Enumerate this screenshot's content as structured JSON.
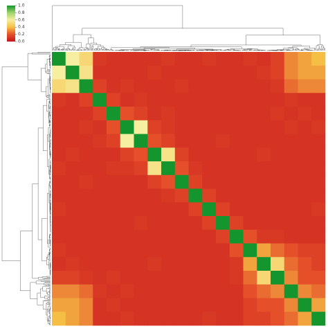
{
  "chart_data": {
    "type": "heatmap",
    "values": [
      [
        1.0,
        0.6,
        0.5,
        0.12,
        0.1,
        0.1,
        0.1,
        0.1,
        0.12,
        0.1,
        0.1,
        0.12,
        0.1,
        0.1,
        0.12,
        0.1,
        0.15,
        0.3,
        0.35,
        0.4
      ],
      [
        0.6,
        1.0,
        0.55,
        0.1,
        0.1,
        0.1,
        0.1,
        0.12,
        0.1,
        0.1,
        0.1,
        0.1,
        0.1,
        0.1,
        0.1,
        0.12,
        0.15,
        0.3,
        0.35,
        0.35
      ],
      [
        0.5,
        0.55,
        1.0,
        0.15,
        0.1,
        0.12,
        0.1,
        0.1,
        0.1,
        0.12,
        0.1,
        0.1,
        0.1,
        0.1,
        0.1,
        0.1,
        0.12,
        0.25,
        0.3,
        0.3
      ],
      [
        0.12,
        0.1,
        0.15,
        1.0,
        0.15,
        0.1,
        0.12,
        0.1,
        0.1,
        0.1,
        0.1,
        0.1,
        0.1,
        0.1,
        0.1,
        0.1,
        0.1,
        0.12,
        0.1,
        0.1
      ],
      [
        0.1,
        0.1,
        0.1,
        0.15,
        1.0,
        0.2,
        0.15,
        0.1,
        0.12,
        0.1,
        0.1,
        0.1,
        0.1,
        0.1,
        0.1,
        0.1,
        0.12,
        0.1,
        0.12,
        0.1
      ],
      [
        0.1,
        0.1,
        0.12,
        0.1,
        0.2,
        1.0,
        0.6,
        0.15,
        0.12,
        0.1,
        0.1,
        0.1,
        0.1,
        0.1,
        0.1,
        0.1,
        0.1,
        0.12,
        0.1,
        0.12
      ],
      [
        0.1,
        0.1,
        0.1,
        0.12,
        0.15,
        0.6,
        1.0,
        0.2,
        0.15,
        0.1,
        0.1,
        0.1,
        0.12,
        0.1,
        0.1,
        0.1,
        0.1,
        0.1,
        0.1,
        0.1
      ],
      [
        0.1,
        0.12,
        0.1,
        0.1,
        0.1,
        0.15,
        0.2,
        1.0,
        0.55,
        0.15,
        0.1,
        0.1,
        0.1,
        0.1,
        0.1,
        0.12,
        0.1,
        0.1,
        0.1,
        0.1
      ],
      [
        0.12,
        0.1,
        0.1,
        0.1,
        0.12,
        0.12,
        0.15,
        0.55,
        1.0,
        0.2,
        0.12,
        0.1,
        0.1,
        0.1,
        0.1,
        0.1,
        0.1,
        0.1,
        0.1,
        0.1
      ],
      [
        0.1,
        0.1,
        0.12,
        0.1,
        0.1,
        0.1,
        0.1,
        0.15,
        0.2,
        1.0,
        0.15,
        0.1,
        0.1,
        0.1,
        0.1,
        0.1,
        0.1,
        0.1,
        0.1,
        0.1
      ],
      [
        0.1,
        0.1,
        0.1,
        0.1,
        0.1,
        0.1,
        0.1,
        0.1,
        0.12,
        0.15,
        1.0,
        0.15,
        0.1,
        0.1,
        0.1,
        0.1,
        0.1,
        0.1,
        0.1,
        0.1
      ],
      [
        0.12,
        0.1,
        0.1,
        0.1,
        0.1,
        0.1,
        0.1,
        0.1,
        0.1,
        0.1,
        0.15,
        1.0,
        0.15,
        0.1,
        0.1,
        0.1,
        0.1,
        0.1,
        0.1,
        0.12
      ],
      [
        0.1,
        0.1,
        0.1,
        0.1,
        0.1,
        0.1,
        0.12,
        0.1,
        0.1,
        0.1,
        0.1,
        0.15,
        1.0,
        0.15,
        0.1,
        0.1,
        0.1,
        0.1,
        0.1,
        0.1
      ],
      [
        0.1,
        0.1,
        0.1,
        0.1,
        0.1,
        0.1,
        0.1,
        0.1,
        0.1,
        0.1,
        0.1,
        0.1,
        0.15,
        1.0,
        0.2,
        0.12,
        0.12,
        0.1,
        0.1,
        0.1
      ],
      [
        0.12,
        0.1,
        0.1,
        0.1,
        0.1,
        0.1,
        0.1,
        0.1,
        0.1,
        0.1,
        0.1,
        0.1,
        0.1,
        0.2,
        1.0,
        0.35,
        0.25,
        0.2,
        0.15,
        0.15
      ],
      [
        0.1,
        0.12,
        0.1,
        0.1,
        0.1,
        0.1,
        0.1,
        0.12,
        0.1,
        0.1,
        0.1,
        0.1,
        0.1,
        0.12,
        0.35,
        1.0,
        0.5,
        0.25,
        0.2,
        0.15
      ],
      [
        0.15,
        0.15,
        0.12,
        0.1,
        0.12,
        0.1,
        0.1,
        0.1,
        0.1,
        0.1,
        0.1,
        0.1,
        0.1,
        0.12,
        0.25,
        0.5,
        1.0,
        0.3,
        0.2,
        0.2
      ],
      [
        0.3,
        0.3,
        0.25,
        0.12,
        0.1,
        0.12,
        0.1,
        0.1,
        0.1,
        0.1,
        0.1,
        0.1,
        0.1,
        0.1,
        0.2,
        0.25,
        0.3,
        1.0,
        0.3,
        0.25
      ],
      [
        0.35,
        0.35,
        0.3,
        0.1,
        0.12,
        0.1,
        0.1,
        0.1,
        0.1,
        0.1,
        0.1,
        0.1,
        0.1,
        0.1,
        0.15,
        0.2,
        0.2,
        0.3,
        1.0,
        0.35
      ],
      [
        0.4,
        0.35,
        0.3,
        0.1,
        0.1,
        0.12,
        0.1,
        0.1,
        0.1,
        0.1,
        0.1,
        0.12,
        0.1,
        0.1,
        0.15,
        0.15,
        0.2,
        0.25,
        0.35,
        1.0
      ]
    ],
    "zlim": [
      0,
      1
    ],
    "zticks": [
      {
        "value": 0,
        "label": "0.0"
      },
      {
        "value": 0.2,
        "label": "0.2"
      },
      {
        "value": 0.4,
        "label": "0.4"
      },
      {
        "value": 0.6,
        "label": "0.6"
      },
      {
        "value": 0.8,
        "label": "0.8"
      },
      {
        "value": 1,
        "label": "1.0"
      }
    ],
    "colorscale": [
      [
        0,
        "#c4161c"
      ],
      [
        0.2,
        "#e5502a"
      ],
      [
        0.4,
        "#f5bf45"
      ],
      [
        0.6,
        "#f6eea0"
      ],
      [
        0.8,
        "#9fd46c"
      ],
      [
        1,
        "#14952e"
      ]
    ]
  }
}
